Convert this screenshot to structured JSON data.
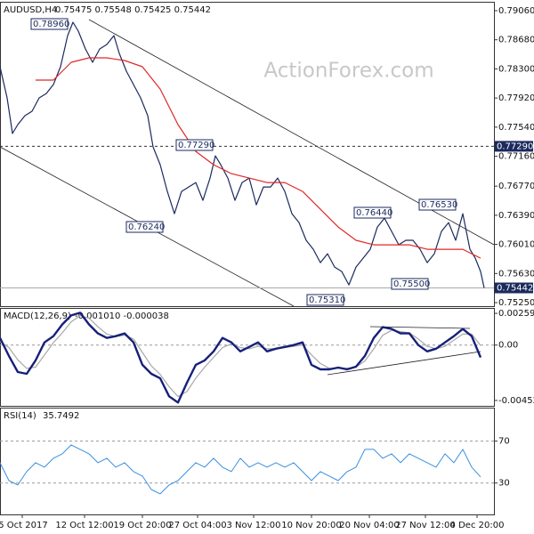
{
  "chart_data": [
    {
      "type": "line",
      "title": "AUDUSD,H4",
      "subtitle": "0.75475 0.75548 0.75425 0.75442",
      "watermark": "ActionForex.com",
      "xlim": [
        0,
        555
      ],
      "ylim": [
        0.75204,
        0.79176
      ],
      "yticks": [
        {
          "value": 0.7906,
          "label": "0.79060"
        },
        {
          "value": 0.7868,
          "label": "0.78680"
        },
        {
          "value": 0.783,
          "label": "0.78300"
        },
        {
          "value": 0.7792,
          "label": "0.77920"
        },
        {
          "value": 0.7754,
          "label": "0.77540"
        },
        {
          "value": 0.7716,
          "label": "0.77160"
        },
        {
          "value": 0.7677,
          "label": "0.76770"
        },
        {
          "value": 0.7639,
          "label": "0.76390"
        },
        {
          "value": 0.7601,
          "label": "0.76010"
        },
        {
          "value": 0.7563,
          "label": "0.75630"
        },
        {
          "value": 0.7525,
          "label": "0.75250"
        }
      ],
      "price_tags": [
        {
          "value": 0.7729,
          "label": "0.77290"
        },
        {
          "value": 0.75442,
          "label": "0.75442"
        }
      ],
      "annotations": [
        "0.78960",
        "0.77290",
        "0.76240",
        "0.76440",
        "0.76530",
        "0.75500",
        "0.75310"
      ],
      "series": [
        {
          "name": "AUDUSD",
          "color": "#1b2a5e",
          "width": 1.2,
          "x": [
            0,
            8,
            14,
            20,
            28,
            36,
            44,
            52,
            60,
            68,
            76,
            82,
            88,
            96,
            104,
            112,
            120,
            128,
            134,
            142,
            150,
            158,
            166,
            172,
            180,
            188,
            196,
            204,
            212,
            220,
            228,
            236,
            242,
            248,
            256,
            264,
            272,
            280,
            288,
            296,
            304,
            312,
            320,
            328,
            336,
            344,
            352,
            360,
            368,
            376,
            384,
            392,
            400,
            408,
            416,
            424,
            432,
            440,
            448,
            456,
            464,
            472,
            480,
            488,
            496,
            504,
            512,
            520,
            528,
            534,
            540,
            544
          ],
          "values": [
            0.78328,
            0.77922,
            0.77457,
            0.77573,
            0.77689,
            0.77747,
            0.77922,
            0.77979,
            0.78096,
            0.78328,
            0.78735,
            0.78909,
            0.78793,
            0.7856,
            0.78386,
            0.7856,
            0.78618,
            0.78735,
            0.78502,
            0.7827,
            0.78096,
            0.77922,
            0.77689,
            0.77282,
            0.7705,
            0.76701,
            0.76411,
            0.76701,
            0.76759,
            0.76817,
            0.76585,
            0.76875,
            0.77166,
            0.7705,
            0.76875,
            0.76585,
            0.76817,
            0.76875,
            0.76527,
            0.76759,
            0.76759,
            0.76875,
            0.76701,
            0.76411,
            0.76295,
            0.76063,
            0.75946,
            0.75772,
            0.75888,
            0.75714,
            0.75656,
            0.75482,
            0.75714,
            0.7583,
            0.75946,
            0.76237,
            0.76353,
            0.76179,
            0.76005,
            0.76063,
            0.76063,
            0.75946,
            0.75772,
            0.75888,
            0.76179,
            0.76295,
            0.76063,
            0.76411,
            0.75946,
            0.7583,
            0.75656,
            0.75442
          ]
        },
        {
          "name": "MA",
          "color": "#e02828",
          "width": 1.2,
          "x": [
            40,
            60,
            80,
            100,
            120,
            140,
            160,
            180,
            200,
            220,
            240,
            260,
            280,
            300,
            320,
            340,
            360,
            380,
            400,
            420,
            440,
            460,
            480,
            500,
            520,
            540
          ],
          "values": [
            0.78154,
            0.78154,
            0.78386,
            0.78444,
            0.78444,
            0.78409,
            0.78328,
            0.78037,
            0.77573,
            0.77224,
            0.7705,
            0.76933,
            0.76875,
            0.76817,
            0.76817,
            0.76701,
            0.76469,
            0.76237,
            0.76063,
            0.76004,
            0.76004,
            0.76004,
            0.75946,
            0.75946,
            0.75946,
            0.7583
          ]
        }
      ]
    },
    {
      "type": "line",
      "title": "MACD(12,26,9)",
      "subtitle": "-0.001010 -0.000038",
      "zero_line": true,
      "xlim": [
        0,
        555
      ],
      "ylim": [
        -0.004962,
        0.003035
      ],
      "yticks": [
        0.002595,
        {
          "value": 0,
          "label": "0.00"
        },
        -0.004522
      ],
      "x": [
        0,
        10,
        20,
        30,
        40,
        50,
        60,
        70,
        80,
        90,
        100,
        110,
        120,
        130,
        140,
        150,
        160,
        170,
        180,
        190,
        200,
        210,
        220,
        230,
        240,
        250,
        260,
        270,
        280,
        290,
        300,
        310,
        320,
        330,
        340,
        350,
        360,
        370,
        380,
        390,
        400,
        410,
        420,
        430,
        440,
        450,
        460,
        470,
        480,
        490,
        500,
        510,
        520,
        530,
        540
      ],
      "series": [
        {
          "name": "Signal",
          "color": "#a8a8a8",
          "width": 1.2,
          "values": [
            0.0003,
            -0.0002,
            -0.0012,
            -0.0019,
            -0.0018,
            -0.0008,
            0.0002,
            0.001,
            0.0019,
            0.0024,
            0.0022,
            0.0015,
            0.0009,
            0.0007,
            0.0008,
            0.0005,
            -0.0006,
            -0.0017,
            -0.0024,
            -0.0034,
            -0.0042,
            -0.0038,
            -0.0027,
            -0.0018,
            -0.001,
            -0.0002,
            0.0001,
            -0.0002,
            -0.0003,
            -0.0001,
            -0.0003,
            -0.0003,
            -0.0002,
            -0.0001,
            0,
            -0.0008,
            -0.0015,
            -0.0019,
            -0.0019,
            -0.0019,
            -0.0018,
            -0.0013,
            -0.0003,
            0.0008,
            0.0012,
            0.0011,
            0.001,
            0.0005,
            -0.0001,
            -0.0003,
            -0.0001,
            0.0004,
            0.0009,
            0.0009,
            -3.8e-05
          ]
        },
        {
          "name": "MACD",
          "color": "#16207a",
          "width": 2.4,
          "values": [
            0.000587,
            -0.00088,
            -0.002201,
            -0.002348,
            -0.001247,
            0.00022,
            0.000734,
            0.001688,
            0.002421,
            0.002641,
            0.001688,
            0.000954,
            0.000587,
            0.000734,
            0.000954,
            0.00022,
            -0.001614,
            -0.002348,
            -0.002715,
            -0.004182,
            -0.004696,
            -0.003082,
            -0.001614,
            -0.001247,
            -0.000514,
            0.000587,
            0.00022,
            -0.000514,
            -0.000147,
            0.00022,
            -0.000514,
            -0.000293,
            -0.000147,
            0,
            0.00022,
            -0.001614,
            -0.001981,
            -0.001981,
            -0.001834,
            -0.001981,
            -0.001761,
            -0.00088,
            0.000587,
            0.001467,
            0.001321,
            0.000954,
            0.000954,
            0,
            -0.000514,
            -0.000293,
            0.00022,
            0.000734,
            0.001321,
            0.000734,
            -0.00101
          ]
        }
      ]
    },
    {
      "type": "line",
      "title": "RSI(14)",
      "subtitle": "35.7492",
      "grid": true,
      "xlim": [
        0,
        555
      ],
      "ylim": [
        0,
        102
      ],
      "yticks": [
        70,
        30
      ],
      "xticks": [
        {
          "value": 25,
          "label": "5 Oct 2017"
        },
        {
          "value": 95,
          "label": "12 Oct 12:00"
        },
        {
          "value": 160,
          "label": "19 Oct 20:00"
        },
        {
          "value": 222,
          "label": "27 Oct 04:00"
        },
        {
          "value": 285,
          "label": "3 Nov 12:00"
        },
        {
          "value": 350,
          "label": "10 Nov 20:00"
        },
        {
          "value": 415,
          "label": "20 Nov 04:00"
        },
        {
          "value": 478,
          "label": "27 Nov 12:00"
        },
        {
          "value": 536,
          "label": "4 Dec 20:00"
        }
      ],
      "x": [
        0,
        10,
        20,
        30,
        40,
        50,
        60,
        70,
        80,
        90,
        100,
        110,
        120,
        130,
        140,
        150,
        160,
        170,
        180,
        190,
        200,
        210,
        220,
        230,
        240,
        250,
        260,
        270,
        280,
        290,
        300,
        310,
        320,
        330,
        340,
        350,
        360,
        370,
        380,
        390,
        400,
        410,
        420,
        430,
        440,
        450,
        460,
        470,
        480,
        490,
        500,
        510,
        520,
        530,
        540
      ],
      "series": [
        {
          "name": "RSI",
          "color": "#3b8fe0",
          "width": 1,
          "values": [
            49.4,
            32.3,
            28.1,
            40.9,
            49.4,
            45.1,
            53.6,
            57.9,
            66.4,
            62.1,
            57.9,
            49.4,
            53.6,
            45.1,
            49.4,
            40.9,
            36.6,
            23.8,
            19.6,
            28.1,
            32.3,
            40.9,
            49.4,
            45.1,
            53.6,
            45.1,
            40.9,
            53.6,
            45.1,
            49.4,
            45.1,
            49.4,
            45.1,
            49.4,
            40.9,
            32.3,
            40.9,
            36.6,
            32.3,
            40.9,
            45.1,
            62.1,
            62.1,
            53.6,
            57.9,
            49.4,
            57.9,
            53.6,
            49.4,
            45.1,
            57.9,
            49.4,
            62.1,
            45.1,
            35.7492
          ]
        }
      ]
    }
  ]
}
